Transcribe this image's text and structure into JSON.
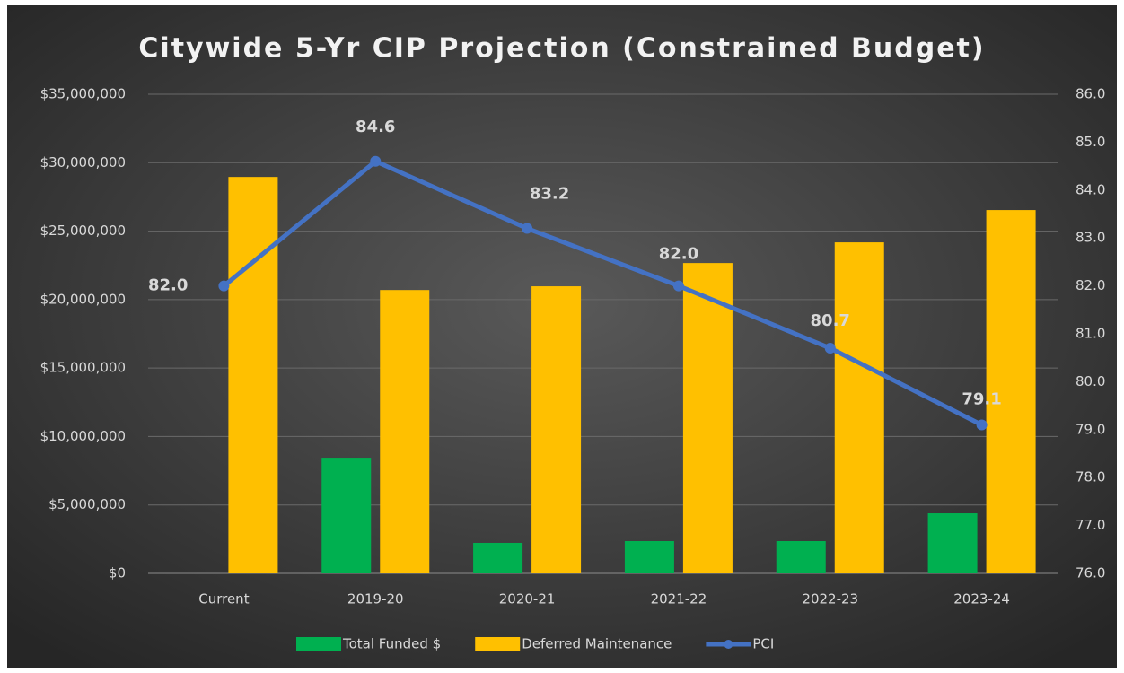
{
  "chart_data": {
    "type": "bar-line",
    "title": "Citywide 5-Yr CIP Projection (Constrained Budget)",
    "categories": [
      "Current",
      "2019-20",
      "2020-21",
      "2021-22",
      "2022-23",
      "2023-24"
    ],
    "series": [
      {
        "name": "Total Funded $",
        "color": "#00b050",
        "type": "bar",
        "values": [
          0,
          8450000,
          2230000,
          2360000,
          2360000,
          4390000
        ]
      },
      {
        "name": "Deferred Maintenance",
        "color": "#ffc000",
        "type": "bar",
        "values": [
          28960000,
          20700000,
          20970000,
          22670000,
          24180000,
          26540000
        ]
      },
      {
        "name": "PCI",
        "color": "#4472c4",
        "type": "line",
        "axis": "y2",
        "values": [
          82,
          84.6,
          83.2,
          82,
          80.7,
          79.1
        ],
        "value_labels": [
          "82.0",
          "84.6",
          "83.2",
          "82.0",
          "80.7",
          "79.1"
        ]
      }
    ],
    "ylim": [
      0,
      35000000
    ],
    "yticks": [
      {
        "value": 0,
        "label": "$0"
      },
      {
        "value": 5000000,
        "label": "$5,000,000"
      },
      {
        "value": 10000000,
        "label": "$10,000,000"
      },
      {
        "value": 15000000,
        "label": "$15,000,000"
      },
      {
        "value": 20000000,
        "label": "$20,000,000"
      },
      {
        "value": 25000000,
        "label": "$25,000,000"
      },
      {
        "value": 30000000,
        "label": "$30,000,000"
      },
      {
        "value": 35000000,
        "label": "$35,000,000"
      }
    ],
    "y2lim": [
      76,
      86
    ],
    "y2ticks": [
      {
        "value": 76,
        "label": "76.0"
      },
      {
        "value": 77,
        "label": "77.0"
      },
      {
        "value": 78,
        "label": "78.0"
      },
      {
        "value": 79,
        "label": "79.0"
      },
      {
        "value": 80,
        "label": "80.0"
      },
      {
        "value": 81,
        "label": "81.0"
      },
      {
        "value": 82,
        "label": "82.0"
      },
      {
        "value": 83,
        "label": "83.0"
      },
      {
        "value": 84,
        "label": "84.0"
      },
      {
        "value": 85,
        "label": "85.0"
      },
      {
        "value": 86,
        "label": "86.0"
      }
    ],
    "grid": true,
    "legend": "bottom"
  }
}
